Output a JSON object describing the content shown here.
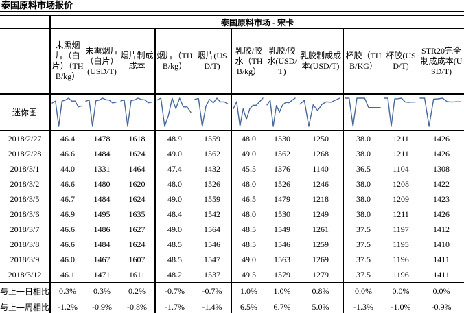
{
  "title": "泰国原料市场报价",
  "table": {
    "region_header": "泰国原料市场 - 宋卡",
    "sparkline_row_label": "迷你图",
    "sparkline_color": "#46689B",
    "group_starts": [
      0,
      3,
      5,
      8
    ],
    "columns": [
      "未熏烟片（白片）（THB/kg）",
      "未熏烟片（白片）(USD/T)",
      "烟片制成成本",
      "烟片（THB/kg）",
      "烟片(USD/T)",
      "乳胶/胶水（THB/kg）",
      "乳胶/胶水(USD/T)",
      "乳胶制成成本(USD/T)",
      "杯胶（THB/KG）",
      "杯胶(USD/T)",
      "STR20完全制成成本(USD/T)"
    ],
    "rows": [
      {
        "date": "2018/2/27",
        "values": [
          "46.4",
          "1478",
          "1618",
          "48.9",
          "1559",
          "48.0",
          "1530",
          "1250",
          "38.0",
          "1211",
          "1426"
        ]
      },
      {
        "date": "2018/2/28",
        "values": [
          "46.6",
          "1484",
          "1624",
          "49.0",
          "1562",
          "49.0",
          "1562",
          "1268",
          "38.0",
          "1211",
          "1426"
        ]
      },
      {
        "date": "2018/3/1",
        "values": [
          "44.0",
          "1331",
          "1464",
          "47.4",
          "1432",
          "45.5",
          "1376",
          "1140",
          "36.5",
          "1104",
          "1308"
        ]
      },
      {
        "date": "2018/3/2",
        "values": [
          "46.6",
          "1480",
          "1620",
          "48.0",
          "1526",
          "48.0",
          "1526",
          "1246",
          "38.0",
          "1208",
          "1422"
        ]
      },
      {
        "date": "2018/3/5",
        "values": [
          "46.7",
          "1484",
          "1624",
          "49.0",
          "1559",
          "46.5",
          "1479",
          "1218",
          "38.0",
          "1209",
          "1423"
        ]
      },
      {
        "date": "2018/3/6",
        "values": [
          "46.9",
          "1495",
          "1635",
          "48.4",
          "1542",
          "48.0",
          "1530",
          "1249",
          "38.0",
          "1211",
          "1426"
        ]
      },
      {
        "date": "2018/3/7",
        "values": [
          "46.6",
          "1486",
          "1627",
          "49.0",
          "1564",
          "48.5",
          "1549",
          "1261",
          "37.5",
          "1197",
          "1412"
        ]
      },
      {
        "date": "2018/3/8",
        "values": [
          "46.6",
          "1484",
          "1624",
          "48.5",
          "1546",
          "48.5",
          "1546",
          "1259",
          "37.5",
          "1195",
          "1410"
        ]
      },
      {
        "date": "2018/3/9",
        "values": [
          "46.0",
          "1467",
          "1607",
          "48.5",
          "1547",
          "49.0",
          "1563",
          "1269",
          "37.5",
          "1196",
          "1411"
        ]
      },
      {
        "date": "2018/3/12",
        "values": [
          "46.1",
          "1471",
          "1611",
          "48.2",
          "1537",
          "49.5",
          "1579",
          "1279",
          "37.5",
          "1196",
          "1411"
        ]
      }
    ],
    "comparisons": [
      {
        "label": "与上一日相比",
        "values": [
          "0.3%",
          "0.3%",
          "0.2%",
          "-0.7%",
          "-0.7%",
          "1.0%",
          "1.0%",
          "0.8%",
          "0.0%",
          "0.0%",
          "0.0%"
        ]
      },
      {
        "label": "与上一周相比",
        "values": [
          "-1.2%",
          "-0.9%",
          "-0.8%",
          "-1.7%",
          "-1.4%",
          "6.5%",
          "6.7%",
          "5.0%",
          "-1.3%",
          "-1.0%",
          "-0.9%"
        ]
      }
    ]
  }
}
